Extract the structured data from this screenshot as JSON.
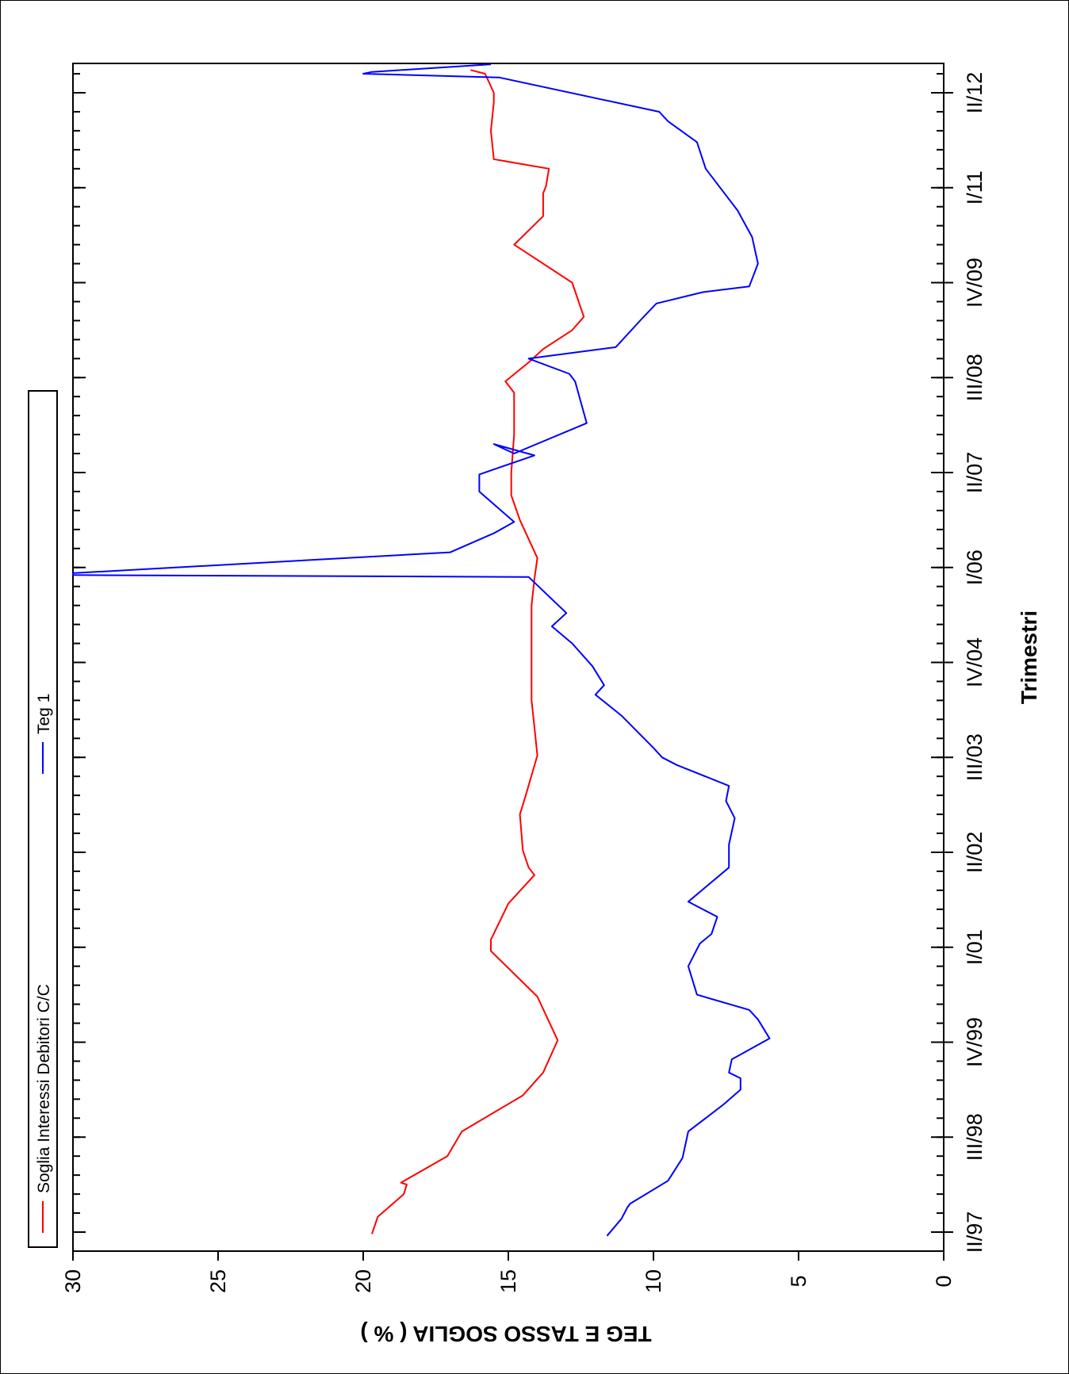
{
  "chart_data": {
    "type": "line",
    "orientation": "rotated-90-clockwise",
    "xlabel": "Trimestri",
    "ylabel": "TEG E TASSO SOGLIA ( % )",
    "ylim": [
      0,
      30
    ],
    "yticks": [
      0,
      5,
      10,
      15,
      20,
      25,
      30
    ],
    "ytick_labels": [
      "0",
      "5",
      "10",
      "15",
      "20",
      "25",
      "30"
    ],
    "x_range": [
      0,
      62
    ],
    "xticks": [
      {
        "pos": 0,
        "label": "II/97"
      },
      {
        "pos": 5,
        "label": "III/98"
      },
      {
        "pos": 10,
        "label": "IV/99"
      },
      {
        "pos": 15,
        "label": "I/01"
      },
      {
        "pos": 20,
        "label": "II/02"
      },
      {
        "pos": 25,
        "label": "III/03"
      },
      {
        "pos": 30,
        "label": "IV/04"
      },
      {
        "pos": 35,
        "label": "I/06"
      },
      {
        "pos": 40,
        "label": "II/07"
      },
      {
        "pos": 45,
        "label": "III/08"
      },
      {
        "pos": 50,
        "label": "IV/09"
      },
      {
        "pos": 55,
        "label": "I/11"
      },
      {
        "pos": 60,
        "label": "II/12"
      }
    ],
    "minor_ticks_per_interval": 5,
    "grid": false,
    "legend_position": "top",
    "series": [
      {
        "name": "Soglia Interessi Debitori C/C",
        "color": "#ff0000",
        "points": [
          [
            -0.1,
            19.7
          ],
          [
            0.8,
            19.5
          ],
          [
            2.0,
            18.6
          ],
          [
            2.5,
            18.5
          ],
          [
            2.6,
            18.7
          ],
          [
            4.0,
            17.1
          ],
          [
            5.3,
            16.6
          ],
          [
            7.2,
            14.5
          ],
          [
            8.4,
            13.8
          ],
          [
            10.1,
            13.3
          ],
          [
            12.4,
            14.0
          ],
          [
            14.8,
            15.6
          ],
          [
            15.4,
            15.6
          ],
          [
            17.3,
            15.0
          ],
          [
            18.8,
            14.1
          ],
          [
            19.2,
            14.3
          ],
          [
            20.1,
            14.5
          ],
          [
            22.0,
            14.6
          ],
          [
            23.0,
            14.4
          ],
          [
            25.1,
            14.0
          ],
          [
            26.6,
            14.1
          ],
          [
            28.0,
            14.2
          ],
          [
            31.5,
            14.2
          ],
          [
            33.0,
            14.2
          ],
          [
            34.4,
            14.1
          ],
          [
            35.5,
            14.0
          ],
          [
            37.5,
            14.6
          ],
          [
            38.8,
            14.9
          ],
          [
            40.0,
            14.9
          ],
          [
            42.0,
            14.8
          ],
          [
            44.2,
            14.8
          ],
          [
            44.8,
            15.1
          ],
          [
            45.8,
            14.3
          ],
          [
            46.5,
            13.8
          ],
          [
            47.5,
            12.8
          ],
          [
            48.2,
            12.4
          ],
          [
            50.0,
            12.8
          ],
          [
            51.5,
            14.3
          ],
          [
            52.0,
            14.8
          ],
          [
            53.5,
            13.8
          ],
          [
            54.7,
            13.8
          ],
          [
            55.1,
            13.7
          ],
          [
            56.0,
            13.6
          ],
          [
            56.5,
            15.5
          ],
          [
            58.0,
            15.6
          ],
          [
            59.5,
            15.5
          ],
          [
            60.0,
            15.5
          ],
          [
            61.0,
            15.8
          ],
          [
            61.2,
            16.3
          ]
        ]
      },
      {
        "name": "Teg 1",
        "color": "#0000ff",
        "points": [
          [
            -0.2,
            11.6
          ],
          [
            0.7,
            11.1
          ],
          [
            1.3,
            10.9
          ],
          [
            1.5,
            10.8
          ],
          [
            2.7,
            9.5
          ],
          [
            3.9,
            9.0
          ],
          [
            5.3,
            8.8
          ],
          [
            6.7,
            7.6
          ],
          [
            7.5,
            7.0
          ],
          [
            8.1,
            7.0
          ],
          [
            8.4,
            7.4
          ],
          [
            9.1,
            7.3
          ],
          [
            10.2,
            6.0
          ],
          [
            11.2,
            6.4
          ],
          [
            11.7,
            6.7
          ],
          [
            12.5,
            8.5
          ],
          [
            14.0,
            8.8
          ],
          [
            14.6,
            8.6
          ],
          [
            15.2,
            8.4
          ],
          [
            15.7,
            8.0
          ],
          [
            16.6,
            7.8
          ],
          [
            17.4,
            8.8
          ],
          [
            19.2,
            7.4
          ],
          [
            20.4,
            7.4
          ],
          [
            21.8,
            7.2
          ],
          [
            22.7,
            7.5
          ],
          [
            23.5,
            7.4
          ],
          [
            24.6,
            9.2
          ],
          [
            25.0,
            9.7
          ],
          [
            25.5,
            10.0
          ],
          [
            27.2,
            11.1
          ],
          [
            28.3,
            12.0
          ],
          [
            28.8,
            11.7
          ],
          [
            29.8,
            12.1
          ],
          [
            31.0,
            12.8
          ],
          [
            31.9,
            13.5
          ],
          [
            32.6,
            13.0
          ],
          [
            34.5,
            14.3
          ],
          [
            34.6,
            30.0
          ],
          [
            34.7,
            30.0
          ],
          [
            35.8,
            17.0
          ],
          [
            36.8,
            15.5
          ],
          [
            37.4,
            14.8
          ],
          [
            39.0,
            16.0
          ],
          [
            39.9,
            16.0
          ],
          [
            40.9,
            14.1
          ],
          [
            41.5,
            15.5
          ],
          [
            41.0,
            14.8
          ],
          [
            42.6,
            12.3
          ],
          [
            44.8,
            12.7
          ],
          [
            45.2,
            12.9
          ],
          [
            46.0,
            14.3
          ],
          [
            46.6,
            11.3
          ],
          [
            48.1,
            10.4
          ],
          [
            48.9,
            9.9
          ],
          [
            49.5,
            8.3
          ],
          [
            49.8,
            6.7
          ],
          [
            51.0,
            6.4
          ],
          [
            52.4,
            6.6
          ],
          [
            53.8,
            7.1
          ],
          [
            55.0,
            7.7
          ],
          [
            56.0,
            8.2
          ],
          [
            57.4,
            8.5
          ],
          [
            58.5,
            9.5
          ],
          [
            59.0,
            9.8
          ],
          [
            60.8,
            15.3
          ],
          [
            61.0,
            20.0
          ],
          [
            61.1,
            19.7
          ],
          [
            61.5,
            15.6
          ]
        ]
      }
    ]
  }
}
